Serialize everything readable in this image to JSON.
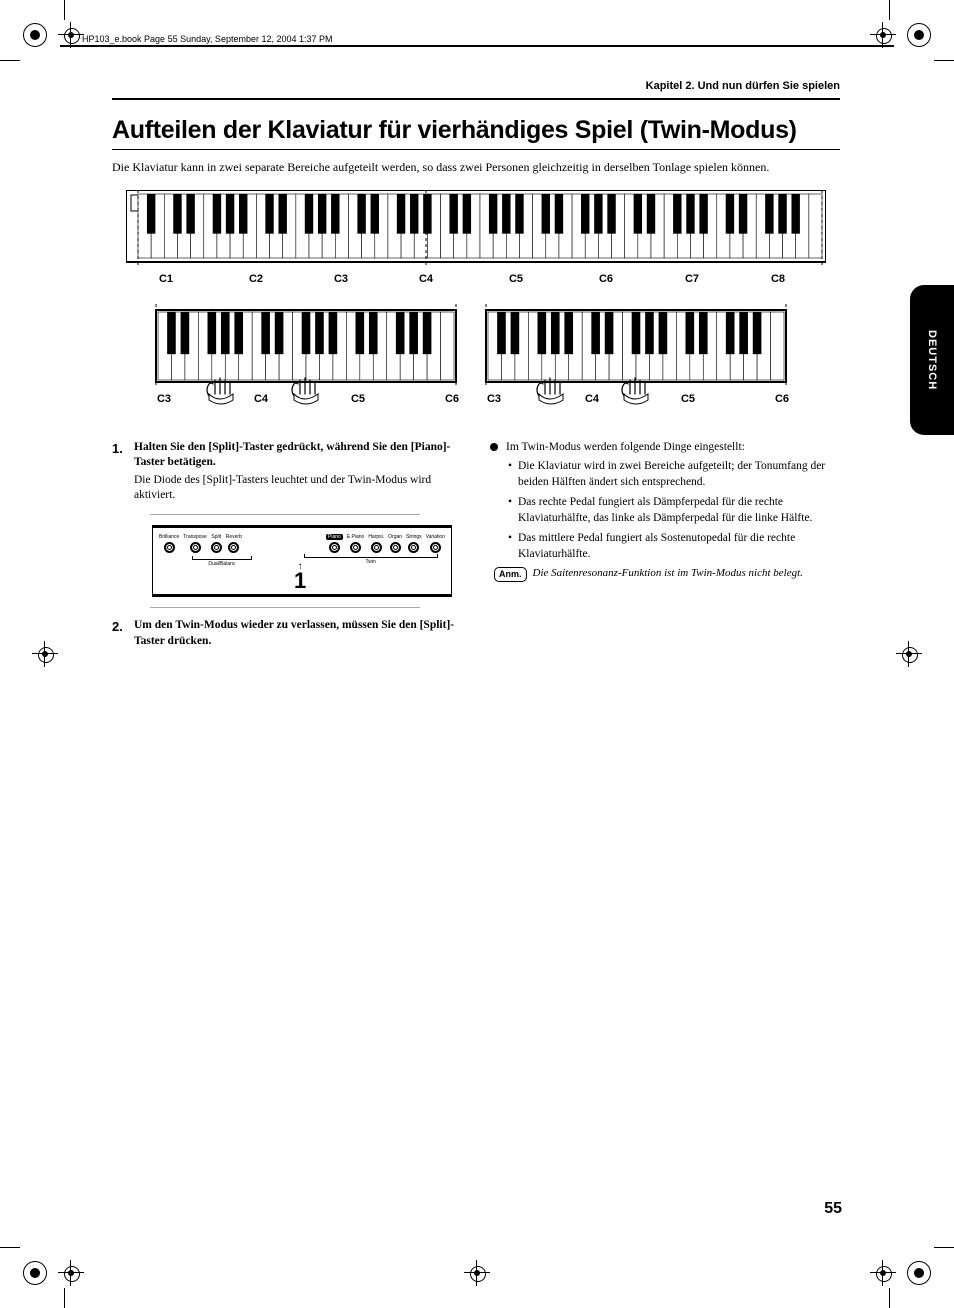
{
  "meta_header": "HP103_e.book  Page 55  Sunday, September 12, 2004  1:37 PM",
  "chapter_header": "Kapitel 2. Und nun dürfen Sie spielen",
  "h1": "Aufteilen der Klaviatur für vierhändiges Spiel (Twin-Modus)",
  "intro": "Die Klaviatur kann in zwei separate Bereiche aufgeteilt werden, so dass zwei Personen gleichzeitig in derselben Tonlage spielen können.",
  "keyboard": {
    "top_labels": [
      "C1",
      "C2",
      "C3",
      "C4",
      "C5",
      "C6",
      "C7",
      "C8"
    ],
    "bottom_labels_left": [
      "C3",
      "C4",
      "C5",
      "C6"
    ],
    "bottom_labels_right": [
      "C3",
      "C4",
      "C5",
      "C6"
    ]
  },
  "steps": [
    {
      "title": "Halten Sie den [Split]-Taster gedrückt, während Sie den [Piano]-Taster betätigen.",
      "body": "Die Diode des [Split]-Tasters leuchtet und der Twin-Modus wird aktiviert."
    },
    {
      "title": "Um den Twin-Modus wieder zu verlassen, müssen Sie den [Split]-Taster drücken.",
      "body": ""
    }
  ],
  "panel": {
    "left_buttons": [
      "Brilliance",
      "Transpose",
      "Split",
      "Reverb"
    ],
    "left_sub": "Dual/Balanc",
    "right_buttons": [
      "Piano",
      "E.Piano",
      "Harpsi.",
      "Organ",
      "Strings",
      "Variation"
    ],
    "right_highlight_index": 0,
    "right_sub": "Twin",
    "indicator": "1"
  },
  "right_col": {
    "lead": "Im Twin-Modus werden folgende Dinge eingestellt:",
    "bullets": [
      "Die Klaviatur wird in zwei Bereiche aufgeteilt; der Ton­umfang der beiden Hälften ändert sich entsprechend.",
      "Das rechte Pedal fungiert als Dämpferpedal für die rechte Klaviaturhälfte, das linke als Dämpferpedal für die linke Hälfte.",
      "Das mittlere Pedal fungiert als Sostenutopedal für die rechte Klaviaturhälfte."
    ],
    "note_label": "Anm.",
    "note_text": "Die Saitenresonanz-Funktion ist im Twin-Modus nicht belegt."
  },
  "lang_tab": "DEUTSCH",
  "page_num": "55",
  "colors": {
    "black": "#000000",
    "white": "#ffffff",
    "grey_rule": "#aaaaaa"
  }
}
